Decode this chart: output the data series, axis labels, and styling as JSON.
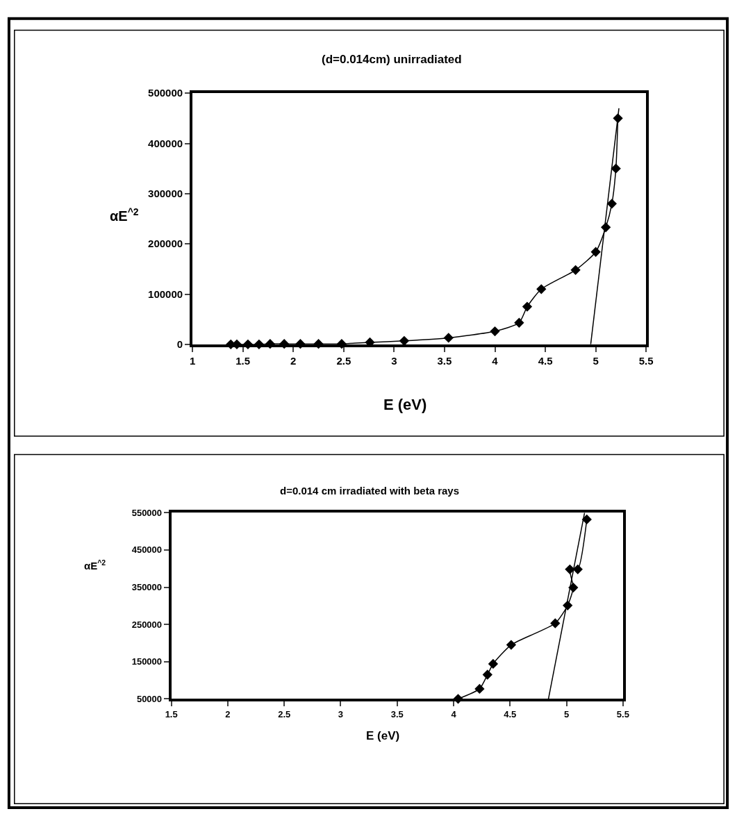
{
  "chart_data": [
    {
      "type": "line",
      "title": "(d=0.014cm) unirradiated",
      "xlabel": "E (eV)",
      "ylabel": "αE$^{^2}$",
      "xlim": [
        1,
        5.5
      ],
      "xticks": [
        1,
        1.5,
        2,
        2.5,
        3,
        3.5,
        4,
        4.5,
        5,
        5.5
      ],
      "ylim": [
        0,
        500000
      ],
      "yticks": [
        0,
        100000,
        200000,
        300000,
        400000,
        500000
      ],
      "series": [
        {
          "color": "#000000",
          "marker": "diamond",
          "line_style": "solid",
          "x": [
            1.38,
            1.44,
            1.55,
            1.66,
            1.77,
            1.91,
            2.07,
            2.25,
            2.48,
            2.76,
            3.1,
            3.54,
            4.0,
            4.24,
            4.32,
            4.46,
            4.8,
            5.0,
            5.1,
            5.16,
            5.2,
            5.22
          ],
          "values": [
            0,
            0,
            0,
            0,
            1000,
            1000,
            1000,
            1000,
            1000,
            4000,
            7000,
            13000,
            26000,
            43000,
            75000,
            110000,
            148000,
            184000,
            233000,
            280000,
            350000,
            450000
          ]
        },
        {
          "type": "line",
          "color": "#000000",
          "marker": "none",
          "line_style": "solid",
          "x": [
            4.95,
            5.23
          ],
          "values": [
            0,
            470000
          ]
        }
      ]
    },
    {
      "type": "line",
      "title": "d=0.014 cm irradiated with beta rays",
      "xlabel": "E (eV)",
      "ylabel": "αE$^{^2}$",
      "xlim": [
        1.5,
        5.5
      ],
      "xticks": [
        1.5,
        2,
        2.5,
        3,
        3.5,
        4,
        4.5,
        5,
        5.5
      ],
      "ylim": [
        50000,
        550000
      ],
      "yticks": [
        50000,
        150000,
        250000,
        350000,
        450000,
        550000
      ],
      "series": [
        {
          "color": "#000000",
          "marker": "diamond",
          "line_style": "solid",
          "x": [
            4.04,
            4.23,
            4.3,
            4.35,
            4.51,
            4.9,
            5.01,
            5.06,
            5.03,
            5.1,
            5.18
          ],
          "values": [
            50000,
            77000,
            115000,
            144000,
            195000,
            253000,
            301000,
            349000,
            398000,
            398000,
            532000
          ]
        },
        {
          "type": "line",
          "color": "#000000",
          "marker": "none",
          "line_style": "solid",
          "x": [
            4.84,
            5.16
          ],
          "values": [
            50000,
            550000
          ]
        }
      ]
    }
  ]
}
